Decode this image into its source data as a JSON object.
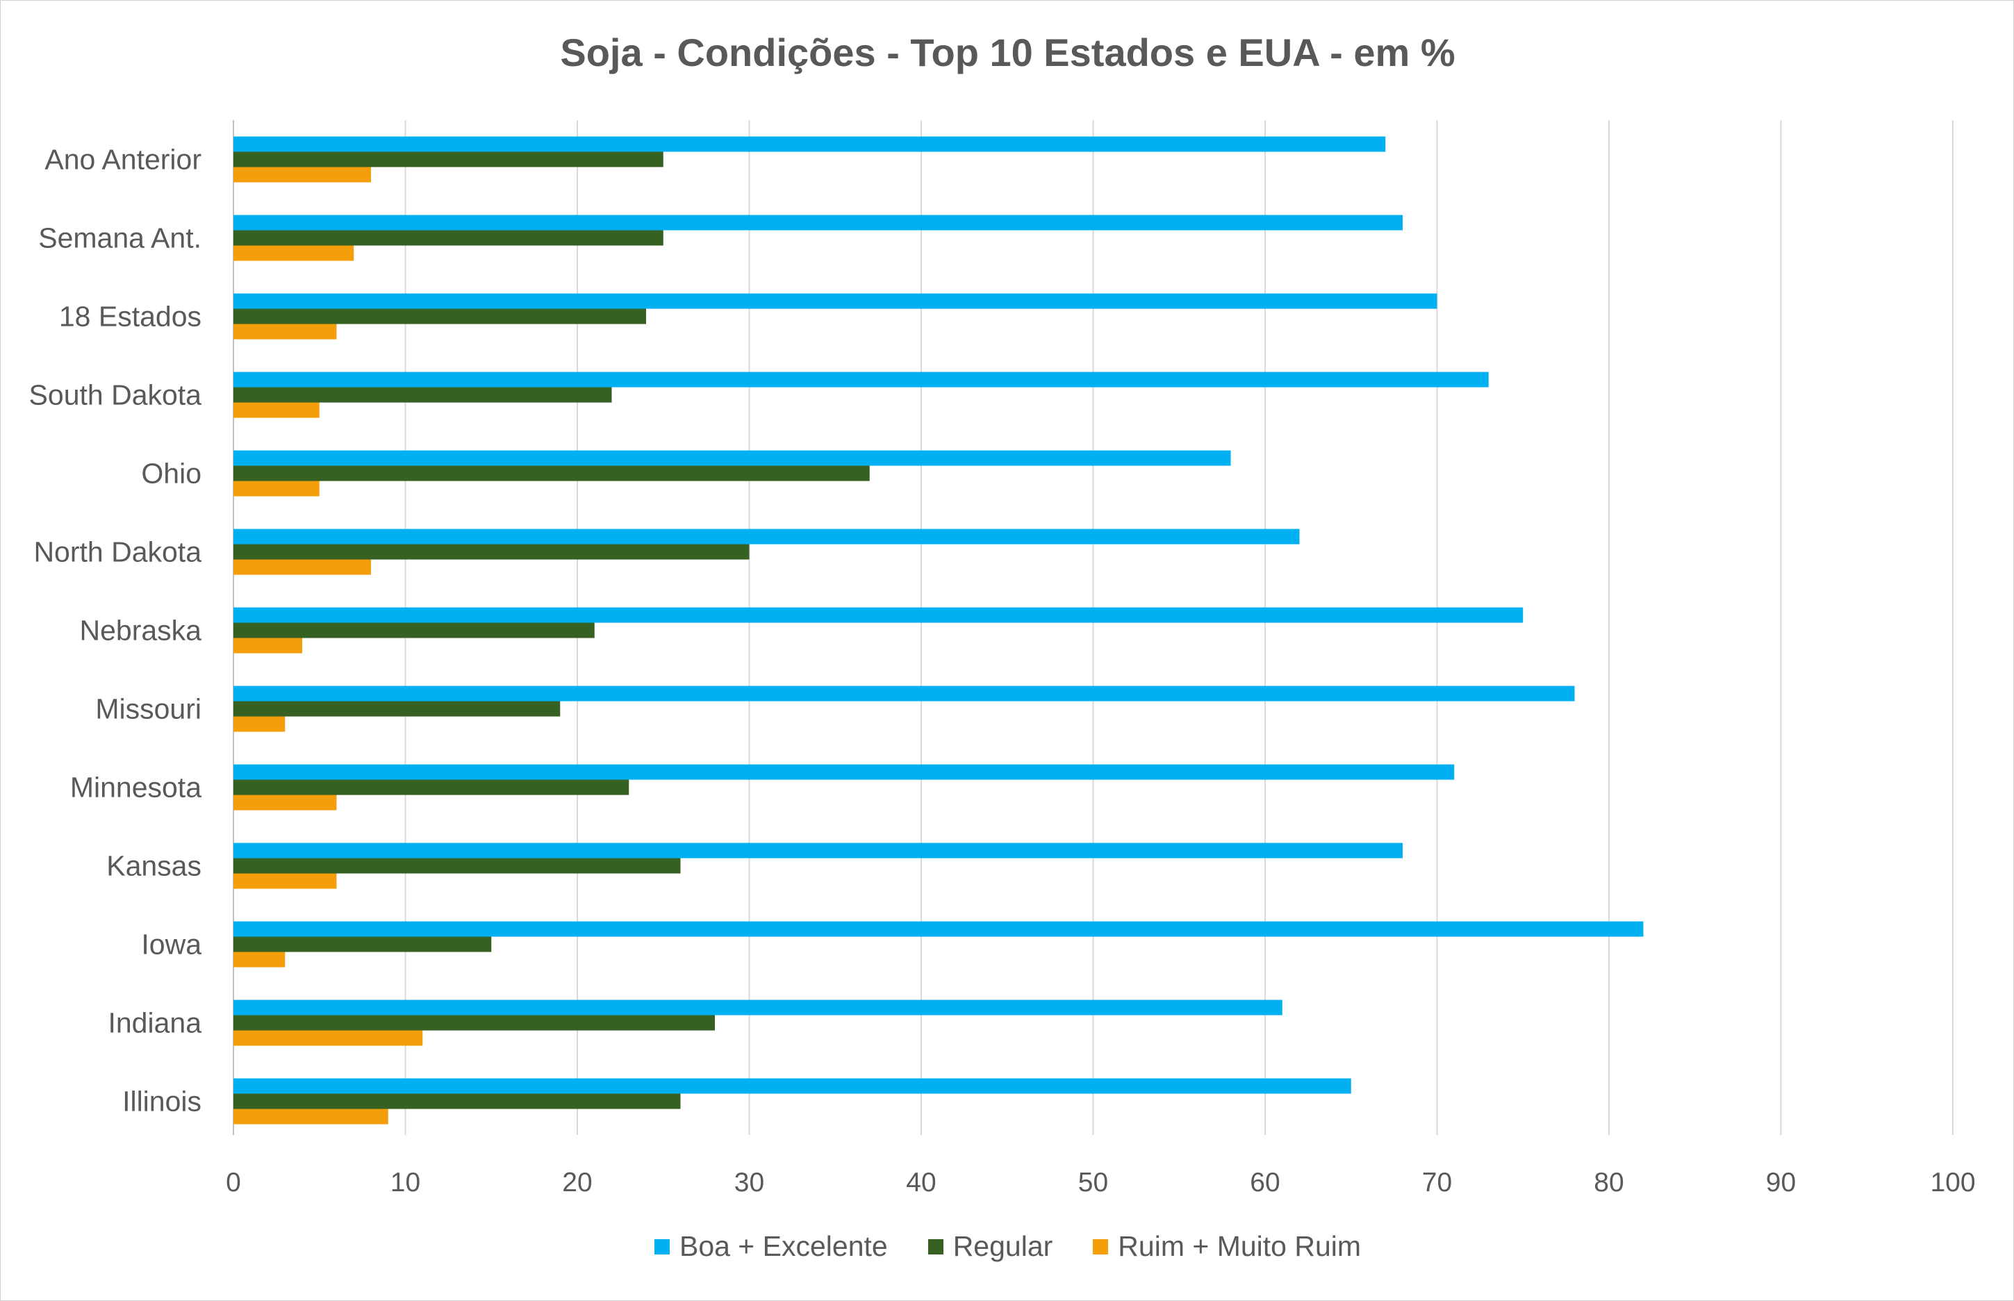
{
  "chart_data": {
    "type": "bar",
    "orientation": "horizontal",
    "title": "Soja - Condições - Top 10 Estados e EUA - em %",
    "xlabel": "",
    "ylabel": "",
    "xlim": [
      0,
      100
    ],
    "x_ticks": [
      "0",
      "10",
      "20",
      "30",
      "40",
      "50",
      "60",
      "70",
      "80",
      "90",
      "100"
    ],
    "grid": "vertical",
    "legend_position": "bottom",
    "categories": [
      "Ano Anterior",
      "Semana Ant.",
      "18 Estados",
      "South Dakota",
      "Ohio",
      "North Dakota",
      "Nebraska",
      "Missouri",
      "Minnesota",
      "Kansas",
      "Iowa",
      "Indiana",
      "Illinois"
    ],
    "series": [
      {
        "name": "Boa + Excelente",
        "color": "#00b0f0",
        "values": [
          67,
          68,
          70,
          73,
          58,
          62,
          75,
          78,
          71,
          68,
          82,
          61,
          65
        ]
      },
      {
        "name": "Regular",
        "color": "#376023",
        "values": [
          25,
          25,
          24,
          22,
          37,
          30,
          21,
          19,
          23,
          26,
          15,
          28,
          26
        ]
      },
      {
        "name": "Ruim + Muito Ruim",
        "color": "#f59e0b",
        "values": [
          8,
          7,
          6,
          5,
          5,
          8,
          4,
          3,
          6,
          6,
          3,
          11,
          9
        ]
      }
    ]
  }
}
